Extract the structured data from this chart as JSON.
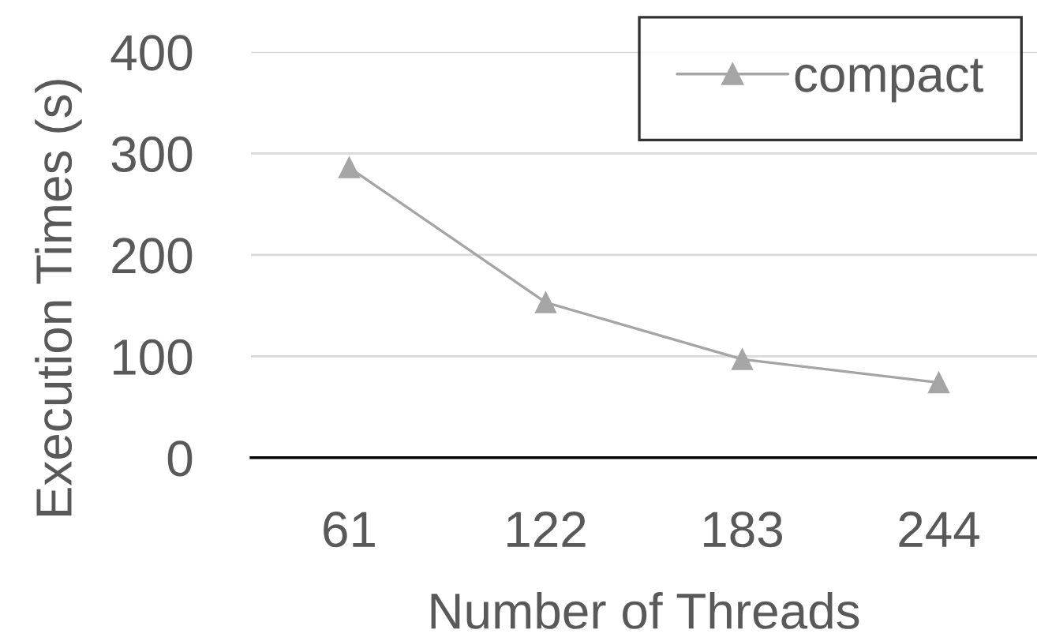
{
  "chart_data": {
    "type": "line",
    "xlabel": "Number of Threads",
    "ylabel": "Execution Times (s)",
    "categories": [
      "61",
      "122",
      "183",
      "244"
    ],
    "series": [
      {
        "name": "compact",
        "color": "#a5a5a5",
        "values": [
          286,
          153,
          97,
          74
        ]
      }
    ],
    "ylim": [
      0,
      400
    ],
    "yticks": [
      0,
      100,
      200,
      300,
      400
    ],
    "grid": "y",
    "legend": "top right",
    "marker": "triangle",
    "line_style": "solid"
  }
}
